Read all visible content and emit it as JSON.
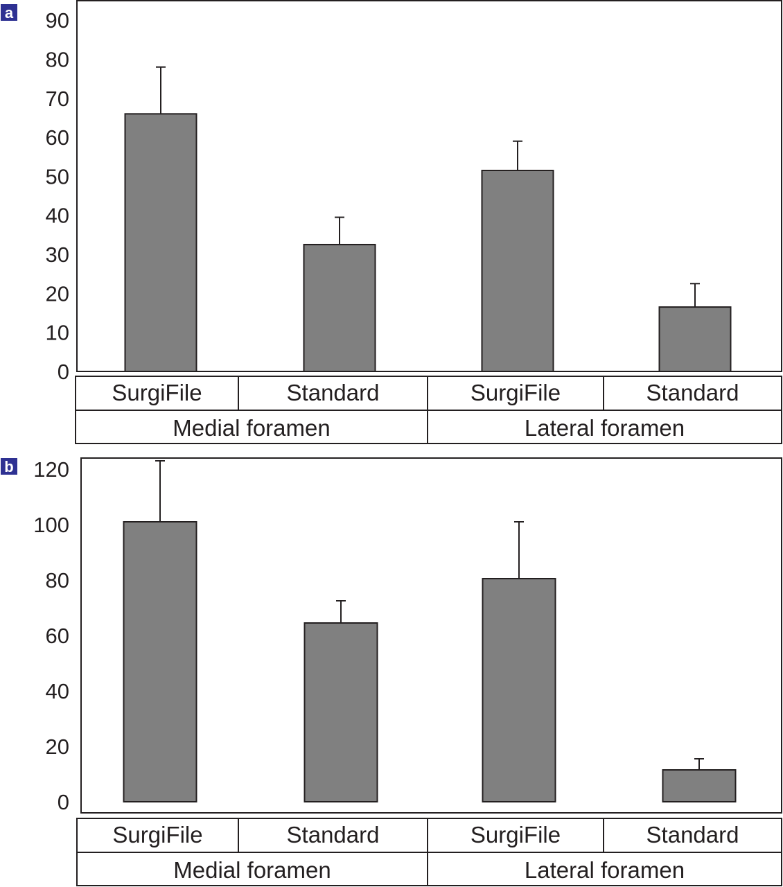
{
  "chart_data": [
    {
      "panel": "a",
      "type": "bar",
      "categories": [
        "SurgiFile",
        "Standard",
        "SurgiFile",
        "Standard"
      ],
      "groups": [
        "Medial foramen",
        "Lateral foramen"
      ],
      "values": [
        66,
        32.5,
        51.5,
        16.5
      ],
      "error_upper": [
        78,
        39.5,
        59,
        22.5
      ],
      "yticks": [
        0,
        10,
        20,
        30,
        40,
        50,
        60,
        70,
        80,
        90
      ],
      "ylim": [
        0,
        95
      ],
      "bar_color": "#808080",
      "grid": false
    },
    {
      "panel": "b",
      "type": "bar",
      "categories": [
        "SurgiFile",
        "Standard",
        "SurgiFile",
        "Standard"
      ],
      "groups": [
        "Medial foramen",
        "Lateral foramen"
      ],
      "values": [
        101,
        64.5,
        80.5,
        11.5
      ],
      "error_upper": [
        123,
        72.5,
        101,
        15.5
      ],
      "yticks": [
        0,
        20,
        40,
        60,
        80,
        100,
        120
      ],
      "ylim": [
        -4,
        124
      ],
      "bar_color": "#808080",
      "grid": false
    }
  ]
}
